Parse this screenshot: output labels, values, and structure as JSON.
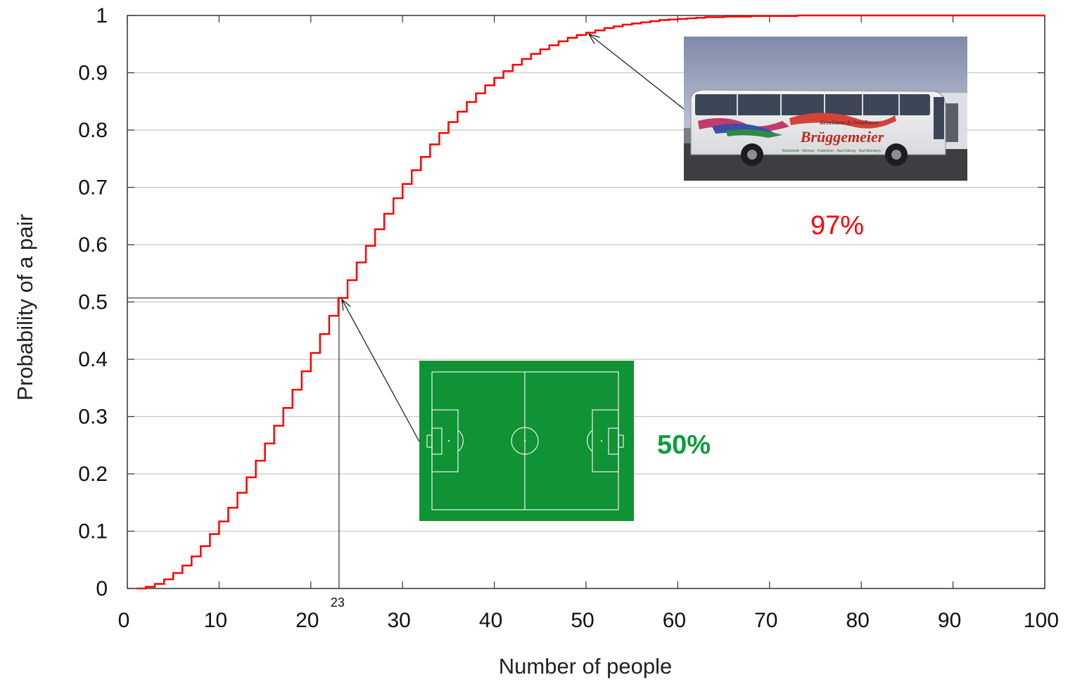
{
  "chart_data": {
    "type": "line",
    "step": true,
    "xlabel": "Number of people",
    "ylabel": "Probability of a pair",
    "xlim": [
      0,
      100
    ],
    "ylim": [
      0,
      1
    ],
    "xticks": [
      "0",
      "10",
      "20",
      "30",
      "40",
      "50",
      "60",
      "70",
      "80",
      "90",
      "100"
    ],
    "yticks": [
      "0",
      "0.1",
      "0.2",
      "0.3",
      "0.4",
      "0.5",
      "0.6",
      "0.7",
      "0.8",
      "0.9",
      "1"
    ],
    "grid": true,
    "series": [
      {
        "color": "#ff0000",
        "x": [
          1,
          2,
          3,
          4,
          5,
          6,
          7,
          8,
          9,
          10,
          11,
          12,
          13,
          14,
          15,
          16,
          17,
          18,
          19,
          20,
          21,
          22,
          23,
          24,
          25,
          26,
          27,
          28,
          29,
          30,
          31,
          32,
          33,
          34,
          35,
          36,
          37,
          38,
          39,
          40,
          41,
          42,
          43,
          44,
          45,
          46,
          47,
          48,
          49,
          50,
          51,
          52,
          53,
          54,
          55,
          56,
          57,
          58,
          59,
          60,
          61,
          62,
          63,
          64,
          65,
          66,
          67,
          68,
          69,
          70,
          71,
          72,
          73,
          74,
          75,
          76,
          77,
          78,
          79,
          80,
          81,
          82,
          83,
          84,
          85,
          86,
          87,
          88,
          89,
          90,
          91,
          92,
          93,
          94,
          95,
          96,
          97,
          98,
          99,
          100
        ],
        "values": [
          0,
          0.003,
          0.008,
          0.016,
          0.027,
          0.04,
          0.056,
          0.074,
          0.095,
          0.117,
          0.141,
          0.167,
          0.194,
          0.223,
          0.253,
          0.284,
          0.315,
          0.347,
          0.379,
          0.411,
          0.444,
          0.476,
          0.507,
          0.538,
          0.569,
          0.598,
          0.627,
          0.654,
          0.681,
          0.706,
          0.73,
          0.753,
          0.775,
          0.795,
          0.814,
          0.832,
          0.849,
          0.864,
          0.878,
          0.891,
          0.903,
          0.914,
          0.924,
          0.933,
          0.941,
          0.948,
          0.955,
          0.961,
          0.966,
          0.97,
          0.974,
          0.978,
          0.981,
          0.984,
          0.986,
          0.988,
          0.99,
          0.992,
          0.993,
          0.994,
          0.995,
          0.996,
          0.997,
          0.997,
          0.998,
          0.998,
          0.998,
          0.999,
          0.999,
          0.999,
          0.999,
          0.999,
          1,
          1,
          1,
          1,
          1,
          1,
          1,
          1,
          1,
          1,
          1,
          1,
          1,
          1,
          1,
          1,
          1,
          1,
          1,
          1,
          1,
          1,
          1,
          1,
          1,
          1,
          1,
          1
        ]
      }
    ],
    "annotations": [
      {
        "x": 23,
        "y": 0.507,
        "label": "50%",
        "tick_label": "23",
        "color": "#0a9e3c",
        "image": "football-pitch"
      },
      {
        "x": 50,
        "y": 0.97,
        "label": "97%",
        "color": "#ff0000",
        "image": "bus-photo"
      }
    ]
  },
  "bus_photo": {
    "brand_top": "Reisebüros & Omnibusse",
    "brand_name": "Brüggemeier",
    "brand_bottom": "Buttelstedt · Weimar · Paderborn · Bad Driburg · Bad Meinberg"
  }
}
